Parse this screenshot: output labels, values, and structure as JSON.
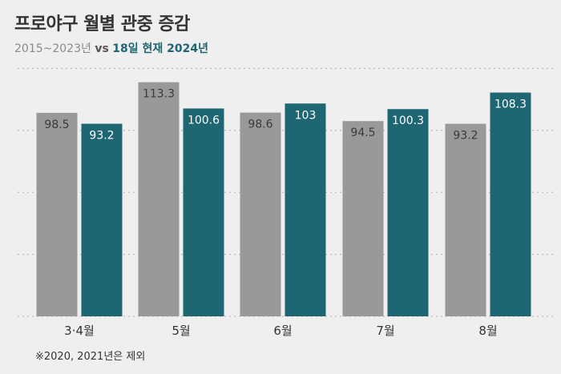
{
  "title": "프로야구 월별 관중 증감",
  "subtitle": {
    "part1": "2015~2023년",
    "vs": "vs",
    "part2": "18일 현재 2024년"
  },
  "footnote": "※2020, 2021년은 제외",
  "colors": {
    "background": "#efefef",
    "series_2015_2023": "#999999",
    "series_2024": "#1e6672",
    "grid": "#b0b0b0"
  },
  "chart_data": {
    "type": "bar",
    "categories": [
      "3·4월",
      "5월",
      "6월",
      "7월",
      "8월"
    ],
    "series": [
      {
        "name": "2015~2023년",
        "values": [
          98.5,
          113.3,
          98.6,
          94.5,
          93.2
        ],
        "labels": [
          "98.5",
          "113.3",
          "98.6",
          "94.5",
          "93.2"
        ]
      },
      {
        "name": "18일 현재 2024년",
        "values": [
          93.2,
          100.6,
          103,
          100.3,
          108.3
        ],
        "labels": [
          "93.2",
          "100.6",
          "103",
          "100.3",
          "108.3"
        ]
      }
    ],
    "ylim": [
      0,
      120
    ],
    "grid": true,
    "legend": "none"
  }
}
